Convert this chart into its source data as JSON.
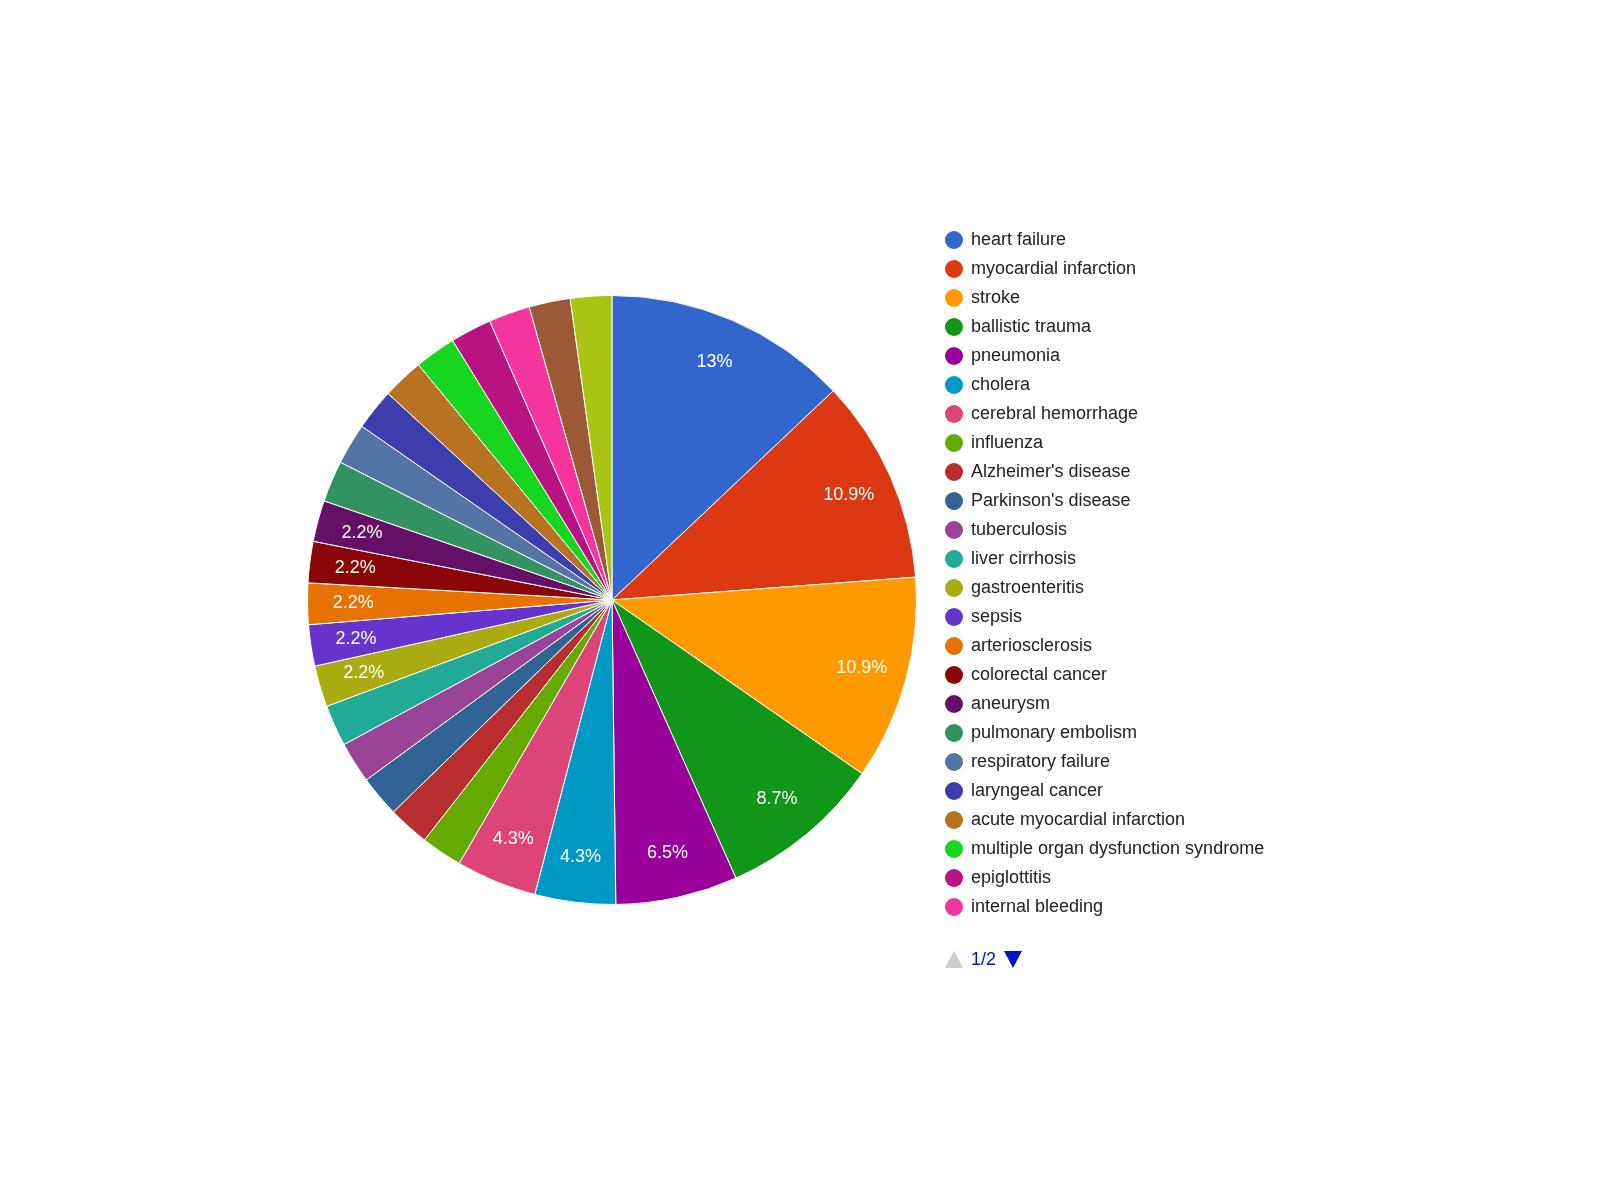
{
  "chart_data": {
    "type": "pie",
    "categories": [
      "heart failure",
      "myocardial infarction",
      "stroke",
      "ballistic trauma",
      "pneumonia",
      "cholera",
      "cerebral hemorrhage",
      "influenza",
      "Alzheimer's disease",
      "Parkinson's disease",
      "tuberculosis",
      "liver cirrhosis",
      "gastroenteritis",
      "sepsis",
      "arteriosclerosis",
      "colorectal cancer",
      "aneurysm",
      "pulmonary embolism",
      "respiratory failure",
      "laryngeal cancer",
      "acute myocardial infarction",
      "multiple organ dysfunction syndrome",
      "epiglottitis",
      "internal bleeding",
      null,
      null
    ],
    "values": [
      13,
      10.9,
      10.9,
      8.7,
      6.5,
      4.3,
      4.3,
      2.2,
      2.2,
      2.2,
      2.2,
      2.2,
      2.2,
      2.2,
      2.2,
      2.2,
      2.2,
      2.2,
      2.2,
      2.2,
      2.2,
      2.2,
      2.2,
      2.2,
      2.2,
      2.2
    ],
    "value_labels": [
      "13%",
      "10.9%",
      "10.9%",
      "8.7%",
      "6.5%",
      "4.3%",
      "4.3%",
      null,
      null,
      null,
      null,
      null,
      "2.2%",
      "2.2%",
      "2.2%",
      "2.2%",
      "2.2%",
      null,
      null,
      null,
      null,
      null,
      null,
      null,
      null,
      null
    ],
    "colors": [
      "#3366cc",
      "#dc3912",
      "#ff9900",
      "#109618",
      "#990099",
      "#0099c6",
      "#dd4477",
      "#66aa00",
      "#b82e2e",
      "#316395",
      "#994499",
      "#22aa99",
      "#aaaa11",
      "#6633cc",
      "#e67300",
      "#8b0707",
      "#651067",
      "#329262",
      "#5574a6",
      "#3b3eac",
      "#b77322",
      "#16d620",
      "#b91383",
      "#f4359e",
      "#9c5935",
      "#a9c413"
    ],
    "legend": "right",
    "annotations": [
      "1/2"
    ]
  }
}
